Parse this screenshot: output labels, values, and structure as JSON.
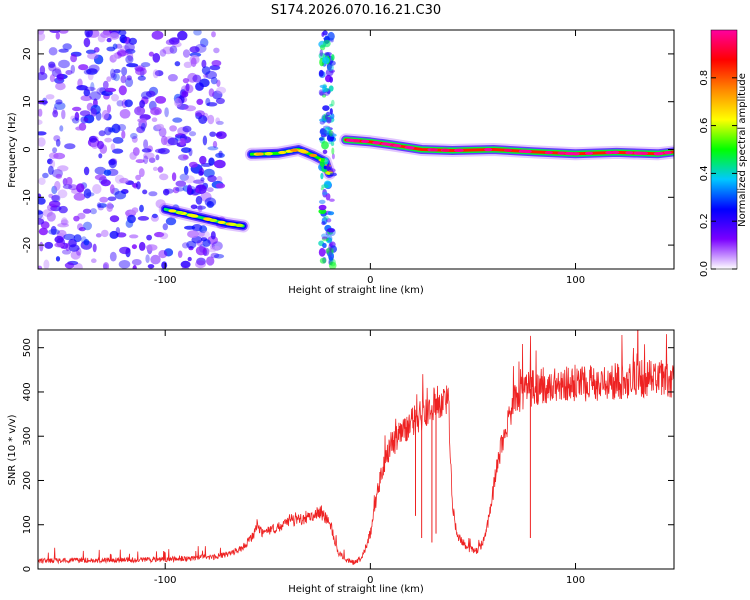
{
  "title": "S174.2026.070.16.21.C30",
  "chart_data": [
    {
      "type": "heatmap",
      "name": "spectrogram",
      "xlabel": "Height of straight line (km)",
      "ylabel": "Frequency (Hz)",
      "xlim": [
        -162,
        148
      ],
      "ylim": [
        -25,
        25
      ],
      "xticks": [
        -100,
        0,
        100
      ],
      "yticks": [
        -20,
        -10,
        0,
        10,
        20
      ],
      "colorbar": {
        "label": "Normalized spectral amplitude",
        "range": [
          0,
          1
        ],
        "ticks": [
          0.0,
          0.2,
          0.4,
          0.6,
          0.8
        ],
        "tick_labels": [
          "0.0",
          "0.2",
          "0.4",
          "0.6",
          "0.8"
        ],
        "colors": [
          "#ffffff",
          "#7a00ff",
          "#0000ff",
          "#00c8ff",
          "#00ff00",
          "#ffff00",
          "#ff8800",
          "#ff0000",
          "#ff00a0"
        ]
      },
      "features": [
        {
          "kind": "noise-scatter",
          "x_range": [
            -162,
            -72
          ],
          "y_range": [
            -25,
            25
          ],
          "amplitude": 0.15
        },
        {
          "kind": "track",
          "x": [
            -100,
            -90,
            -80,
            -70,
            -62
          ],
          "y": [
            -12.5,
            -13.5,
            -14.5,
            -15.5,
            -16.0
          ],
          "amplitude": 0.45
        },
        {
          "kind": "track",
          "x": [
            -58,
            -45,
            -35,
            -28,
            -22,
            -20
          ],
          "y": [
            -1.0,
            -0.8,
            0.0,
            -1.2,
            -2.5,
            -5.0
          ],
          "amplitude": 0.5
        },
        {
          "kind": "track",
          "x": [
            -12,
            0,
            10,
            25,
            40,
            60,
            80,
            100,
            120,
            140,
            148
          ],
          "y": [
            2.0,
            1.6,
            1.0,
            0.0,
            -0.2,
            0.0,
            -0.5,
            -0.9,
            -0.6,
            -0.9,
            -0.5
          ],
          "amplitude": 0.85
        },
        {
          "kind": "vertical-band",
          "x": -21,
          "y_range": [
            -25,
            25
          ],
          "amplitude": 0.25
        }
      ]
    },
    {
      "type": "line",
      "name": "snr",
      "xlabel": "Height of straight line (km)",
      "ylabel": "SNR (10 * v/v)",
      "xlim": [
        -162,
        148
      ],
      "ylim": [
        0,
        540
      ],
      "xticks": [
        -100,
        0,
        100
      ],
      "yticks": [
        0,
        100,
        200,
        300,
        400,
        500
      ],
      "color": "#ee2222",
      "x": [
        -162,
        -140,
        -120,
        -100,
        -85,
        -75,
        -68,
        -62,
        -58,
        -55,
        -52,
        -45,
        -40,
        -35,
        -30,
        -25,
        -20,
        -16,
        -12,
        -8,
        -4,
        0,
        3,
        6,
        10,
        14,
        18,
        22,
        26,
        30,
        34,
        38,
        40,
        42,
        45,
        48,
        52,
        55,
        58,
        62,
        66,
        70,
        74,
        80,
        90,
        100,
        110,
        120,
        130,
        140,
        148
      ],
      "y": [
        18,
        20,
        20,
        22,
        25,
        28,
        35,
        50,
        70,
        95,
        80,
        95,
        110,
        110,
        120,
        130,
        110,
        40,
        20,
        15,
        25,
        80,
        160,
        230,
        280,
        300,
        320,
        340,
        350,
        370,
        380,
        390,
        150,
        80,
        60,
        45,
        40,
        60,
        120,
        240,
        320,
        380,
        400,
        410,
        420,
        420,
        420,
        425,
        430,
        430,
        430
      ],
      "spikes": [
        {
          "x": 22,
          "low": 120
        },
        {
          "x": 25,
          "low": 70
        },
        {
          "x": 30,
          "low": 60
        },
        {
          "x": 32,
          "low": 80
        },
        {
          "x": 78,
          "low": 70
        }
      ]
    }
  ]
}
